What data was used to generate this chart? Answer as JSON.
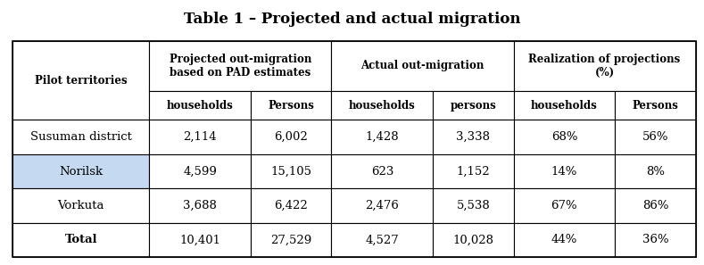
{
  "title": "Table 1 – Projected and actual migration",
  "col_groups": [
    {
      "label": "Projected out-migration\nbased on PAD estimates",
      "span": 2
    },
    {
      "label": "Actual out-migration",
      "span": 2
    },
    {
      "label": "Realization of projections\n(%)",
      "span": 2
    }
  ],
  "sub_headers": [
    "households",
    "Persons",
    "households",
    "persons",
    "households",
    "Persons"
  ],
  "row_header": "Pilot territories",
  "rows": [
    {
      "label": "Susuman district",
      "values": [
        "2,114",
        "6,002",
        "1,428",
        "3,338",
        "68%",
        "56%"
      ],
      "highlight": false,
      "bold": false
    },
    {
      "label": "Norilsk",
      "values": [
        "4,599",
        "15,105",
        "623",
        "1,152",
        "14%",
        "8%"
      ],
      "highlight": true,
      "bold": false
    },
    {
      "label": "Vorkuta",
      "values": [
        "3,688",
        "6,422",
        "2,476",
        "5,538",
        "67%",
        "86%"
      ],
      "highlight": false,
      "bold": false
    },
    {
      "label": "Total",
      "values": [
        "10,401",
        "27,529",
        "4,527",
        "10,028",
        "44%",
        "36%"
      ],
      "highlight": false,
      "bold": true
    }
  ],
  "bg_color": "#ffffff",
  "highlight_bg": "#c5d9f1",
  "title_fontsize": 12,
  "header_fontsize": 8.5,
  "cell_fontsize": 9.5,
  "label_fontsize": 9.5
}
